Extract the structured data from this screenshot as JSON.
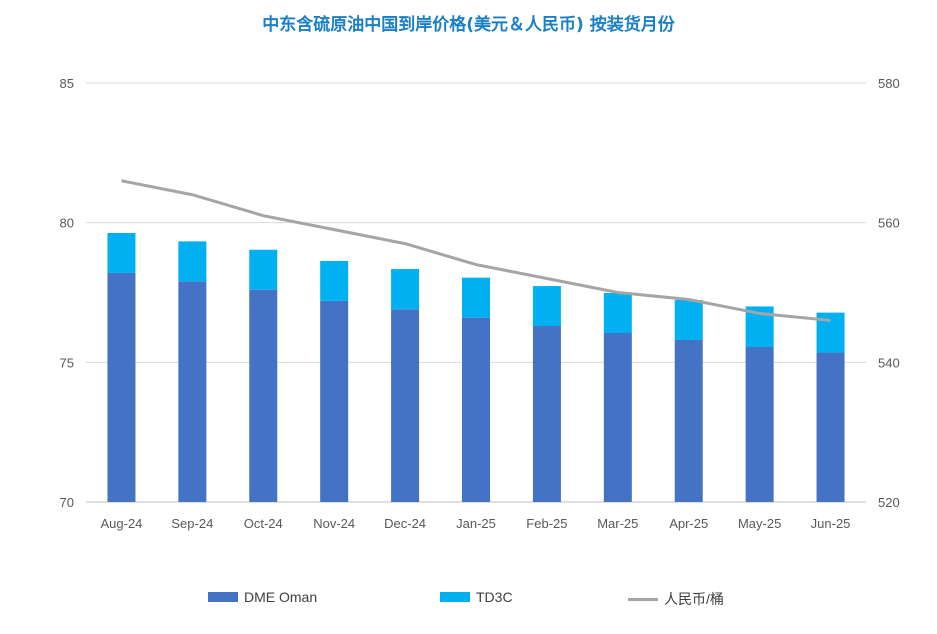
{
  "chart_data": {
    "type": "bar",
    "title": "中东含硫原油中国到岸价格(美元＆人民币) 按装货月份",
    "categories": [
      "Aug-24",
      "Sep-24",
      "Oct-24",
      "Nov-24",
      "Dec-24",
      "Jan-25",
      "Feb-25",
      "Mar-25",
      "Apr-25",
      "May-25",
      "Jun-25"
    ],
    "series": [
      {
        "name": "DME Oman",
        "type": "stacked-bar",
        "axis": "left",
        "color": "#4472c4",
        "values": [
          78.2,
          77.9,
          77.6,
          77.2,
          76.9,
          76.6,
          76.3,
          76.05,
          75.8,
          75.55,
          75.35
        ]
      },
      {
        "name": "TD3C",
        "type": "stacked-bar",
        "axis": "left",
        "color": "#00b0f0",
        "values": [
          1.43,
          1.43,
          1.43,
          1.43,
          1.44,
          1.43,
          1.43,
          1.43,
          1.43,
          1.45,
          1.43
        ]
      },
      {
        "name": "人民币/桶",
        "type": "line",
        "axis": "right",
        "color": "#a5a5a5",
        "values": [
          566,
          564,
          561,
          559,
          557,
          554,
          552,
          550,
          549,
          547,
          546
        ]
      }
    ],
    "left_axis": {
      "ylim": [
        70,
        85
      ],
      "ticks": [
        "70",
        "75",
        "80",
        "85"
      ]
    },
    "right_axis": {
      "ylim": [
        520,
        580
      ],
      "ticks": [
        "520",
        "540",
        "560",
        "580"
      ]
    },
    "grid": true,
    "legend_position": "bottom"
  }
}
